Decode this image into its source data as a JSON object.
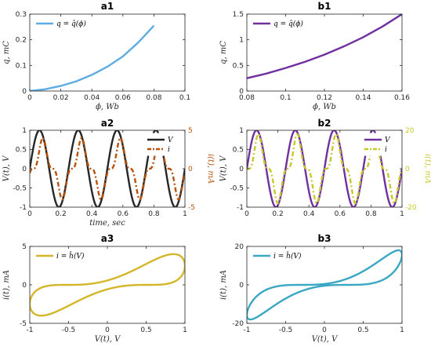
{
  "chart_data": [
    {
      "id": "a1",
      "type": "line",
      "title": "a1",
      "xlabel": "ϕ, Wb",
      "ylabel": "q, mC",
      "xlim": [
        0,
        0.1
      ],
      "ylim": [
        0,
        0.3
      ],
      "xticks": [
        "0",
        "0.02",
        "0.04",
        "0.06",
        "0.08",
        "0.1"
      ],
      "yticks": [
        "0",
        "0.1",
        "0.2",
        "0.3"
      ],
      "legend_position": "top-left",
      "grid": false,
      "series": [
        {
          "name": "q = q̂(ϕ)",
          "color": "#5DADE2",
          "x": [
            0,
            0.01,
            0.02,
            0.03,
            0.04,
            0.05,
            0.06,
            0.07,
            0.08
          ],
          "y": [
            0,
            0.007,
            0.02,
            0.038,
            0.063,
            0.095,
            0.135,
            0.19,
            0.255
          ]
        }
      ]
    },
    {
      "id": "b1",
      "type": "line",
      "title": "b1",
      "xlabel": "ϕ, Wb",
      "ylabel": "q, mC",
      "xlim": [
        0.08,
        0.16
      ],
      "ylim": [
        0,
        1.5
      ],
      "xticks": [
        "0.08",
        "0.1",
        "0.12",
        "0.14",
        "0.16"
      ],
      "yticks": [
        "0",
        "0.5",
        "1",
        "1.5"
      ],
      "legend_position": "top-left",
      "grid": false,
      "series": [
        {
          "name": "q = q̂(ϕ)",
          "color": "#7030A0",
          "x": [
            0.08,
            0.09,
            0.1,
            0.11,
            0.12,
            0.13,
            0.14,
            0.15,
            0.16
          ],
          "y": [
            0.25,
            0.34,
            0.45,
            0.57,
            0.71,
            0.87,
            1.05,
            1.26,
            1.5
          ]
        }
      ]
    },
    {
      "id": "a2",
      "type": "line",
      "title": "a2",
      "xlabel": "time, sec",
      "ylabel": "V(t), V",
      "ylabel_right": "i(t), mA",
      "xlim": [
        0,
        1
      ],
      "ylim": [
        -1,
        1
      ],
      "ylim_right": [
        -5,
        5
      ],
      "xticks": [
        "0",
        "0.2",
        "0.4",
        "0.6",
        "0.8",
        "1"
      ],
      "yticks": [
        "-1",
        "-0.5",
        "0",
        "0.5",
        "1"
      ],
      "yticks_right": [
        "-5",
        "0",
        "5"
      ],
      "legend_position": "top-right",
      "grid": false,
      "series": [
        {
          "name": "V",
          "color": "#262626",
          "style": "solid",
          "axis": "left",
          "func": "sin",
          "freq": 4,
          "amp": 1
        },
        {
          "name": "i",
          "color": "#B8520A",
          "style": "dashdot",
          "axis": "right",
          "func": "cube",
          "freq": 4,
          "amp": 4,
          "phase": 0.55
        }
      ]
    },
    {
      "id": "b2",
      "type": "line",
      "title": "b2",
      "xlabel": "",
      "ylabel": "V(t), V",
      "ylabel_right": "i(t), mA",
      "xlim": [
        0,
        1
      ],
      "ylim": [
        -1,
        1
      ],
      "ylim_right": [
        -20,
        20
      ],
      "xticks": [
        "0",
        "0.2",
        "0.4",
        "0.6",
        "0.8",
        "1"
      ],
      "yticks": [
        "-1",
        "-0.5",
        "0",
        "0.5",
        "1"
      ],
      "yticks_right": [
        "-20",
        "0",
        "20"
      ],
      "legend_position": "top-right",
      "grid": false,
      "series": [
        {
          "name": "V",
          "color": "#7030A0",
          "style": "solid",
          "axis": "left",
          "func": "sin",
          "freq": 4,
          "amp": 1
        },
        {
          "name": "i",
          "color": "#C8C82A",
          "style": "dashdot",
          "axis": "right",
          "func": "cube",
          "freq": 4,
          "amp": 18,
          "phase": 0.3
        }
      ]
    },
    {
      "id": "a3",
      "type": "line",
      "title": "a3",
      "xlabel": "V(t), V",
      "ylabel": "i(t), mA",
      "xlim": [
        -1,
        1
      ],
      "ylim": [
        -5,
        5
      ],
      "xticks": [
        "-1",
        "-0.5",
        "0",
        "0.5",
        "1"
      ],
      "yticks": [
        "-5",
        "0",
        "5"
      ],
      "legend_position": "top-left",
      "grid": false,
      "series": [
        {
          "name": "i = ĥ(V)",
          "color": "#D4B62A",
          "style": "solid",
          "func": "loop",
          "amp": 4,
          "phase": 0.55
        }
      ]
    },
    {
      "id": "b3",
      "type": "line",
      "title": "b3",
      "xlabel": "V(t), V",
      "ylabel": "i(t), mA",
      "xlim": [
        -1,
        1
      ],
      "ylim": [
        -20,
        20
      ],
      "xticks": [
        "-1",
        "-0.5",
        "0",
        "0.5",
        "1"
      ],
      "yticks": [
        "-20",
        "0",
        "20"
      ],
      "legend_position": "top-left",
      "grid": false,
      "series": [
        {
          "name": "i = ĥ(V)",
          "color": "#3AA7C4",
          "style": "solid",
          "func": "loop",
          "amp": 18,
          "phase": 0.3
        }
      ]
    }
  ]
}
